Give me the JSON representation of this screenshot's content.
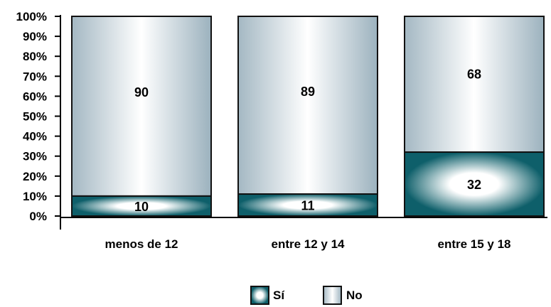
{
  "chart_data": {
    "type": "bar",
    "stacked": true,
    "categories": [
      "menos de 12",
      "entre 12 y 14",
      "entre 15 y 18"
    ],
    "series": [
      {
        "name": "Sí",
        "values": [
          10,
          11,
          32
        ],
        "data_labels": [
          "10",
          "11",
          "32"
        ]
      },
      {
        "name": "No",
        "values": [
          90,
          89,
          68
        ],
        "data_labels": [
          "90",
          "89",
          "68"
        ]
      }
    ],
    "y_ticks": [
      "0%",
      "10%",
      "20%",
      "30%",
      "40%",
      "50%",
      "60%",
      "70%",
      "80%",
      "90%",
      "100%"
    ],
    "ylim": [
      0,
      100
    ],
    "legend": {
      "placement": "bottom",
      "items": [
        "Sí",
        "No"
      ]
    },
    "grid": false,
    "colors": {
      "si_dark": "#0e5f6a",
      "si_light": "#ffffff",
      "no_dark": "#9fb4bf",
      "no_light": "#ffffff",
      "axis": "#000000"
    }
  }
}
